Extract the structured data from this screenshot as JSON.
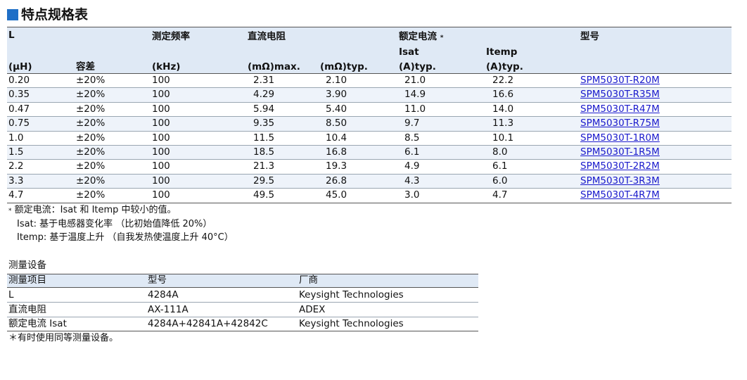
{
  "title": "特点规格表",
  "spec_table": {
    "header": {
      "l": "L",
      "freq": "测定频率",
      "dcr": "直流电阻",
      "current": "额定电流",
      "current_mark": "*",
      "model": "型号",
      "isat": "Isat",
      "itemp": "Itemp",
      "units": [
        "(μH)",
        "容差",
        "(kHz)",
        "(mΩ)max.",
        "(mΩ)typ.",
        "(A)typ.",
        "(A)typ."
      ]
    },
    "rows": [
      [
        "0.20",
        "±20%",
        "100",
        "2.31",
        "2.10",
        "21.0",
        "22.2",
        "SPM5030T-R20M"
      ],
      [
        "0.35",
        "±20%",
        "100",
        "4.29",
        "3.90",
        "14.9",
        "16.6",
        "SPM5030T-R35M"
      ],
      [
        "0.47",
        "±20%",
        "100",
        "5.94",
        "5.40",
        "11.0",
        "14.0",
        "SPM5030T-R47M"
      ],
      [
        "0.75",
        "±20%",
        "100",
        "9.35",
        "8.50",
        "9.7",
        "11.3",
        "SPM5030T-R75M"
      ],
      [
        "1.0",
        "±20%",
        "100",
        "11.5",
        "10.4",
        "8.5",
        "10.1",
        "SPM5030T-1R0M"
      ],
      [
        "1.5",
        "±20%",
        "100",
        "18.5",
        "16.8",
        "6.1",
        "8.0",
        "SPM5030T-1R5M"
      ],
      [
        "2.2",
        "±20%",
        "100",
        "21.3",
        "19.3",
        "4.9",
        "6.1",
        "SPM5030T-2R2M"
      ],
      [
        "3.3",
        "±20%",
        "100",
        "29.5",
        "26.8",
        "4.3",
        "6.0",
        "SPM5030T-3R3M"
      ],
      [
        "4.7",
        "±20%",
        "100",
        "49.5",
        "45.0",
        "3.0",
        "4.7",
        "SPM5030T-4R7M"
      ]
    ]
  },
  "notes": {
    "mark": "*",
    "lines": [
      "额定电流：Isat 和 Itemp 中较小的值。",
      "Isat: 基于电感器变化率 （比初始值降低 20%）",
      "Itemp: 基于温度上升 （自我发热使温度上升 40°C）"
    ]
  },
  "equipment": {
    "title": "测量设备",
    "header": [
      "测量项目",
      "型号",
      "厂商"
    ],
    "rows": [
      [
        "L",
        "4284A",
        "Keysight Technologies"
      ],
      [
        "直流电阻",
        "AX-111A",
        "ADEX"
      ],
      [
        "额定电流 Isat",
        "4284A+42841A+42842C",
        "Keysight Technologies"
      ]
    ],
    "footnote": "＊有时使用同等测量设备。"
  }
}
